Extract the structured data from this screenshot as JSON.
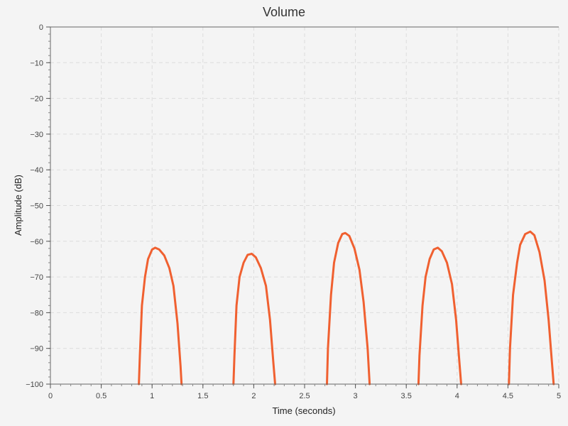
{
  "chart_data": {
    "type": "line",
    "title": "Volume",
    "xlabel": "Time (seconds)",
    "ylabel": "Amplitude (dB)",
    "xlim": [
      0,
      5
    ],
    "ylim": [
      -100,
      0
    ],
    "x_ticks": [
      0,
      0.5,
      1,
      1.5,
      2,
      2.5,
      3,
      3.5,
      4,
      4.5,
      5
    ],
    "x_tick_labels": [
      "0",
      "0.5",
      "1",
      "1.5",
      "2",
      "2.5",
      "3",
      "3.5",
      "4",
      "4.5",
      "5"
    ],
    "y_ticks": [
      0,
      -10,
      -20,
      -30,
      -40,
      -50,
      -60,
      -70,
      -80,
      -90,
      -100
    ],
    "y_tick_labels": [
      "0",
      "−10",
      "−20",
      "−30",
      "−40",
      "−50",
      "−60",
      "−70",
      "−80",
      "−90",
      "−100"
    ],
    "grid": true,
    "line_color": "#f06030",
    "series": [
      {
        "segments": [
          [
            [
              0.87,
              -100
            ],
            [
              0.88,
              -92
            ],
            [
              0.9,
              -78
            ],
            [
              0.93,
              -70
            ],
            [
              0.96,
              -65
            ],
            [
              1.0,
              -62.3
            ],
            [
              1.03,
              -61.8
            ],
            [
              1.07,
              -62.3
            ],
            [
              1.12,
              -64
            ],
            [
              1.17,
              -67.5
            ],
            [
              1.21,
              -72.5
            ],
            [
              1.25,
              -83
            ],
            [
              1.28,
              -95
            ],
            [
              1.29,
              -100
            ]
          ],
          [
            [
              1.8,
              -100
            ],
            [
              1.81,
              -92
            ],
            [
              1.83,
              -78
            ],
            [
              1.86,
              -70
            ],
            [
              1.9,
              -66
            ],
            [
              1.94,
              -63.8
            ],
            [
              1.98,
              -63.5
            ],
            [
              2.02,
              -64.5
            ],
            [
              2.07,
              -67.5
            ],
            [
              2.12,
              -72.5
            ],
            [
              2.16,
              -82
            ],
            [
              2.19,
              -93
            ],
            [
              2.21,
              -100
            ]
          ],
          [
            [
              2.72,
              -100
            ],
            [
              2.73,
              -90
            ],
            [
              2.76,
              -75
            ],
            [
              2.79,
              -66
            ],
            [
              2.83,
              -60.5
            ],
            [
              2.87,
              -58
            ],
            [
              2.9,
              -57.7
            ],
            [
              2.94,
              -58.5
            ],
            [
              2.99,
              -62
            ],
            [
              3.04,
              -68
            ],
            [
              3.08,
              -77
            ],
            [
              3.12,
              -90
            ],
            [
              3.14,
              -100
            ]
          ],
          [
            [
              3.62,
              -100
            ],
            [
              3.63,
              -92
            ],
            [
              3.66,
              -78
            ],
            [
              3.69,
              -70
            ],
            [
              3.73,
              -65
            ],
            [
              3.77,
              -62.3
            ],
            [
              3.81,
              -61.8
            ],
            [
              3.85,
              -62.8
            ],
            [
              3.9,
              -66
            ],
            [
              3.95,
              -72
            ],
            [
              3.99,
              -82
            ],
            [
              4.02,
              -93
            ],
            [
              4.04,
              -100
            ]
          ],
          [
            [
              4.51,
              -100
            ],
            [
              4.52,
              -90
            ],
            [
              4.55,
              -75
            ],
            [
              4.59,
              -66
            ],
            [
              4.62,
              -61
            ],
            [
              4.67,
              -58
            ],
            [
              4.72,
              -57.3
            ],
            [
              4.76,
              -58.3
            ],
            [
              4.81,
              -63
            ],
            [
              4.86,
              -71
            ],
            [
              4.9,
              -82
            ],
            [
              4.93,
              -93
            ],
            [
              4.95,
              -100
            ]
          ]
        ]
      }
    ]
  }
}
